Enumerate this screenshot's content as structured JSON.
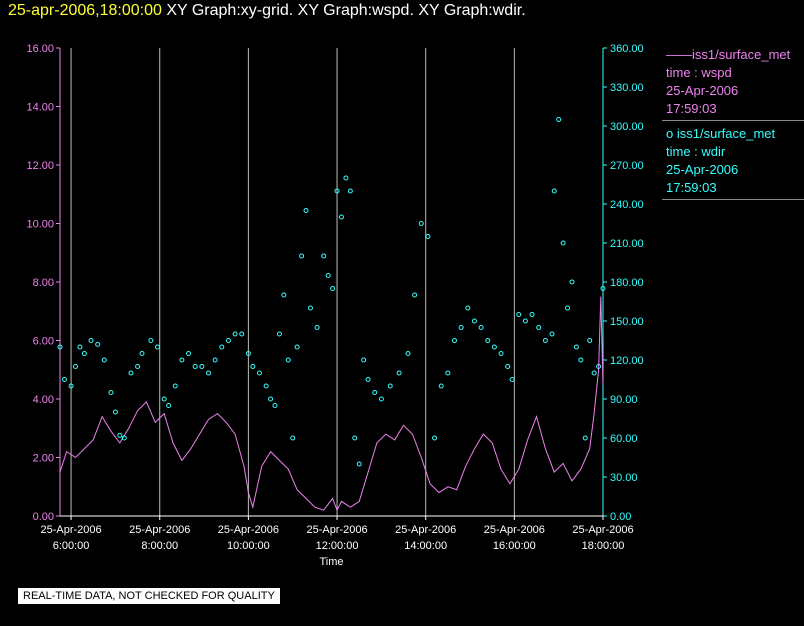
{
  "title": {
    "timestamp": "25-apr-2006,18:00:00",
    "rest": "XY Graph:xy-grid.  XY Graph:wspd.  XY Graph:wdir."
  },
  "legend": [
    {
      "marker": "——",
      "name": "iss1/surface_met",
      "label": "time : wspd",
      "date": "25-Apr-2006",
      "time": "17:59:03",
      "color": "#ee82ee"
    },
    {
      "marker": "o",
      "name": "iss1/surface_met",
      "label": "time : wdir",
      "date": "25-Apr-2006",
      "time": "17:59:03",
      "color": "#33ffff"
    }
  ],
  "footer": "REAL-TIME DATA, NOT CHECKED FOR QUALITY",
  "chart_data": {
    "type": "line",
    "xlabel": "Time",
    "x_ticks": [
      {
        "date": "25-Apr-2006",
        "time": "6:00:00",
        "h": 6
      },
      {
        "date": "25-Apr-2006",
        "time": "8:00:00",
        "h": 8
      },
      {
        "date": "25-Apr-2006",
        "time": "10:00:00",
        "h": 10
      },
      {
        "date": "25-Apr-2006",
        "time": "12:00:00",
        "h": 12
      },
      {
        "date": "25-Apr-2006",
        "time": "14:00:00",
        "h": 14
      },
      {
        "date": "25-Apr-2006",
        "time": "16:00:00",
        "h": 16
      },
      {
        "date": "25-Apr-2006",
        "time": "18:00:00",
        "h": 18
      }
    ],
    "xlim": [
      5.75,
      18.0
    ],
    "y_left": {
      "lim": [
        0,
        16
      ],
      "ticks": [
        "0.00",
        "2.00",
        "4.00",
        "6.00",
        "8.00",
        "10.00",
        "12.00",
        "14.00",
        "16.00"
      ],
      "color": "#ee82ee"
    },
    "y_right": {
      "lim": [
        0,
        360
      ],
      "ticks": [
        "0.00",
        "30.00",
        "60.00",
        "90.00",
        "120.00",
        "150.00",
        "180.00",
        "210.00",
        "240.00",
        "270.00",
        "300.00",
        "330.00",
        "360.00"
      ],
      "color": "#33ffff"
    },
    "grid": "vertical",
    "series": [
      {
        "name": "wspd",
        "kind": "line",
        "axis": "left",
        "color": "#ee82ee",
        "points": [
          [
            5.75,
            1.5
          ],
          [
            5.9,
            2.2
          ],
          [
            6.1,
            2.0
          ],
          [
            6.3,
            2.3
          ],
          [
            6.5,
            2.6
          ],
          [
            6.7,
            3.4
          ],
          [
            6.9,
            2.9
          ],
          [
            7.1,
            2.5
          ],
          [
            7.3,
            3.0
          ],
          [
            7.5,
            3.6
          ],
          [
            7.7,
            3.9
          ],
          [
            7.9,
            3.2
          ],
          [
            8.1,
            3.5
          ],
          [
            8.3,
            2.5
          ],
          [
            8.5,
            1.9
          ],
          [
            8.7,
            2.3
          ],
          [
            8.9,
            2.8
          ],
          [
            9.1,
            3.3
          ],
          [
            9.3,
            3.5
          ],
          [
            9.5,
            3.2
          ],
          [
            9.7,
            2.8
          ],
          [
            9.9,
            1.7
          ],
          [
            10.0,
            0.8
          ],
          [
            10.1,
            0.3
          ],
          [
            10.3,
            1.7
          ],
          [
            10.5,
            2.2
          ],
          [
            10.7,
            1.9
          ],
          [
            10.9,
            1.6
          ],
          [
            11.1,
            0.9
          ],
          [
            11.3,
            0.6
          ],
          [
            11.5,
            0.3
          ],
          [
            11.7,
            0.2
          ],
          [
            11.9,
            0.6
          ],
          [
            12.0,
            0.2
          ],
          [
            12.1,
            0.5
          ],
          [
            12.3,
            0.3
          ],
          [
            12.5,
            0.5
          ],
          [
            12.7,
            1.5
          ],
          [
            12.9,
            2.5
          ],
          [
            13.1,
            2.8
          ],
          [
            13.3,
            2.6
          ],
          [
            13.5,
            3.1
          ],
          [
            13.7,
            2.8
          ],
          [
            13.9,
            2.0
          ],
          [
            14.1,
            1.1
          ],
          [
            14.3,
            0.8
          ],
          [
            14.5,
            1.0
          ],
          [
            14.7,
            0.9
          ],
          [
            14.9,
            1.7
          ],
          [
            15.1,
            2.3
          ],
          [
            15.3,
            2.8
          ],
          [
            15.5,
            2.5
          ],
          [
            15.7,
            1.6
          ],
          [
            15.9,
            1.1
          ],
          [
            16.1,
            1.6
          ],
          [
            16.3,
            2.6
          ],
          [
            16.5,
            3.4
          ],
          [
            16.7,
            2.3
          ],
          [
            16.9,
            1.5
          ],
          [
            17.1,
            1.8
          ],
          [
            17.3,
            1.2
          ],
          [
            17.5,
            1.6
          ],
          [
            17.7,
            2.3
          ],
          [
            17.8,
            3.5
          ],
          [
            17.9,
            5.0
          ],
          [
            17.95,
            7.5
          ],
          [
            18.0,
            4.5
          ]
        ]
      },
      {
        "name": "wdir",
        "kind": "scatter",
        "axis": "right",
        "color": "#33ffff",
        "points": [
          [
            5.75,
            130
          ],
          [
            5.85,
            105
          ],
          [
            6.0,
            100
          ],
          [
            6.1,
            115
          ],
          [
            6.2,
            130
          ],
          [
            6.3,
            125
          ],
          [
            6.45,
            135
          ],
          [
            6.6,
            132
          ],
          [
            6.75,
            120
          ],
          [
            6.9,
            95
          ],
          [
            7.0,
            80
          ],
          [
            7.1,
            62
          ],
          [
            7.2,
            60
          ],
          [
            7.35,
            110
          ],
          [
            7.5,
            115
          ],
          [
            7.6,
            125
          ],
          [
            7.8,
            135
          ],
          [
            7.95,
            130
          ],
          [
            8.1,
            90
          ],
          [
            8.2,
            85
          ],
          [
            8.35,
            100
          ],
          [
            8.5,
            120
          ],
          [
            8.65,
            125
          ],
          [
            8.8,
            115
          ],
          [
            8.95,
            115
          ],
          [
            9.1,
            110
          ],
          [
            9.25,
            120
          ],
          [
            9.4,
            130
          ],
          [
            9.55,
            135
          ],
          [
            9.7,
            140
          ],
          [
            9.85,
            140
          ],
          [
            10.0,
            125
          ],
          [
            10.1,
            115
          ],
          [
            10.25,
            110
          ],
          [
            10.4,
            100
          ],
          [
            10.5,
            90
          ],
          [
            10.6,
            85
          ],
          [
            10.7,
            140
          ],
          [
            10.8,
            170
          ],
          [
            10.9,
            120
          ],
          [
            11.0,
            60
          ],
          [
            11.1,
            130
          ],
          [
            11.2,
            200
          ],
          [
            11.3,
            235
          ],
          [
            11.4,
            160
          ],
          [
            11.55,
            145
          ],
          [
            11.7,
            200
          ],
          [
            11.8,
            185
          ],
          [
            11.9,
            175
          ],
          [
            12.0,
            250
          ],
          [
            12.1,
            230
          ],
          [
            12.2,
            260
          ],
          [
            12.3,
            250
          ],
          [
            12.4,
            60
          ],
          [
            12.5,
            40
          ],
          [
            12.6,
            120
          ],
          [
            12.7,
            105
          ],
          [
            12.85,
            95
          ],
          [
            13.0,
            90
          ],
          [
            13.2,
            100
          ],
          [
            13.4,
            110
          ],
          [
            13.6,
            125
          ],
          [
            13.75,
            170
          ],
          [
            13.9,
            225
          ],
          [
            14.05,
            215
          ],
          [
            14.2,
            60
          ],
          [
            14.35,
            100
          ],
          [
            14.5,
            110
          ],
          [
            14.65,
            135
          ],
          [
            14.8,
            145
          ],
          [
            14.95,
            160
          ],
          [
            15.1,
            150
          ],
          [
            15.25,
            145
          ],
          [
            15.4,
            135
          ],
          [
            15.55,
            130
          ],
          [
            15.7,
            125
          ],
          [
            15.85,
            115
          ],
          [
            15.95,
            105
          ],
          [
            16.1,
            155
          ],
          [
            16.25,
            150
          ],
          [
            16.4,
            155
          ],
          [
            16.55,
            145
          ],
          [
            16.7,
            135
          ],
          [
            16.85,
            140
          ],
          [
            16.9,
            250
          ],
          [
            17.0,
            305
          ],
          [
            17.1,
            210
          ],
          [
            17.2,
            160
          ],
          [
            17.3,
            180
          ],
          [
            17.4,
            130
          ],
          [
            17.5,
            120
          ],
          [
            17.6,
            60
          ],
          [
            17.7,
            135
          ],
          [
            17.8,
            110
          ],
          [
            17.9,
            115
          ],
          [
            18.0,
            175
          ]
        ]
      }
    ]
  }
}
